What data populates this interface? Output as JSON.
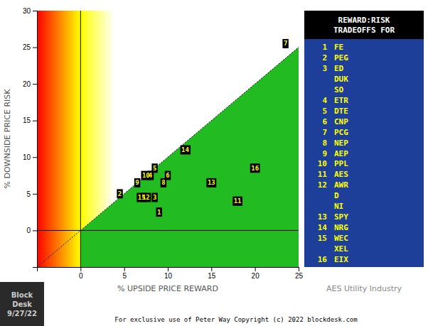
{
  "chart_data": {
    "type": "scatter",
    "title": "REWARD:RISK\nTRADEOFFS FOR",
    "xlabel": "% UPSIDE PRICE REWARD",
    "ylabel": "% DOWNSIDE PRICE RISK",
    "subtitle": "AES Utility Industry",
    "footnote": "For exclusive use of Peter Way Copyright (c) 2022 blockdesk.com",
    "annotations": [
      "Block\nDesk\n9/27/22"
    ],
    "labels": [
      "1",
      "2",
      "3",
      "4",
      "5",
      "6",
      "7",
      "8",
      "9",
      "10",
      "11",
      "12",
      "13",
      "14",
      "15",
      "16"
    ],
    "x": [
      9.0,
      4.5,
      8.5,
      8.0,
      8.5,
      10.0,
      23.5,
      9.5,
      6.5,
      7.5,
      18.0,
      7.5,
      15.0,
      12.0,
      7.0,
      20.0
    ],
    "values": [
      2.5,
      5.0,
      4.5,
      7.5,
      8.5,
      7.5,
      25.5,
      6.5,
      6.5,
      7.5,
      4.0,
      4.5,
      6.5,
      11.0,
      4.5,
      8.5
    ],
    "color": "#000000",
    "key": [
      {
        "num": "1",
        "ticker": "FE"
      },
      {
        "num": "2",
        "ticker": "PEG"
      },
      {
        "num": "3",
        "ticker": "ED"
      },
      {
        "num": null,
        "ticker": "DUK"
      },
      {
        "num": null,
        "ticker": "SO"
      },
      {
        "num": "4",
        "ticker": "ETR"
      },
      {
        "num": "5",
        "ticker": "DTE"
      },
      {
        "num": "6",
        "ticker": "CNP"
      },
      {
        "num": "7",
        "ticker": "PCG"
      },
      {
        "num": "8",
        "ticker": "NEP"
      },
      {
        "num": "9",
        "ticker": "AEP"
      },
      {
        "num": "10",
        "ticker": "PPL"
      },
      {
        "num": "11",
        "ticker": "AES"
      },
      {
        "num": "12",
        "ticker": "AWR"
      },
      {
        "num": null,
        "ticker": "D"
      },
      {
        "num": null,
        "ticker": "NI"
      },
      {
        "num": "13",
        "ticker": "SPY"
      },
      {
        "num": "14",
        "ticker": "NRG"
      },
      {
        "num": "15",
        "ticker": "WEC"
      },
      {
        "num": null,
        "ticker": "XEL"
      },
      {
        "num": "16",
        "ticker": "EIX"
      }
    ],
    "xlim": [
      -5,
      25
    ],
    "ylim": [
      -5,
      30
    ],
    "xticks": [
      0,
      5,
      10,
      15,
      20,
      25
    ],
    "yticks": [
      0,
      5,
      10,
      15,
      20,
      25,
      30
    ]
  }
}
